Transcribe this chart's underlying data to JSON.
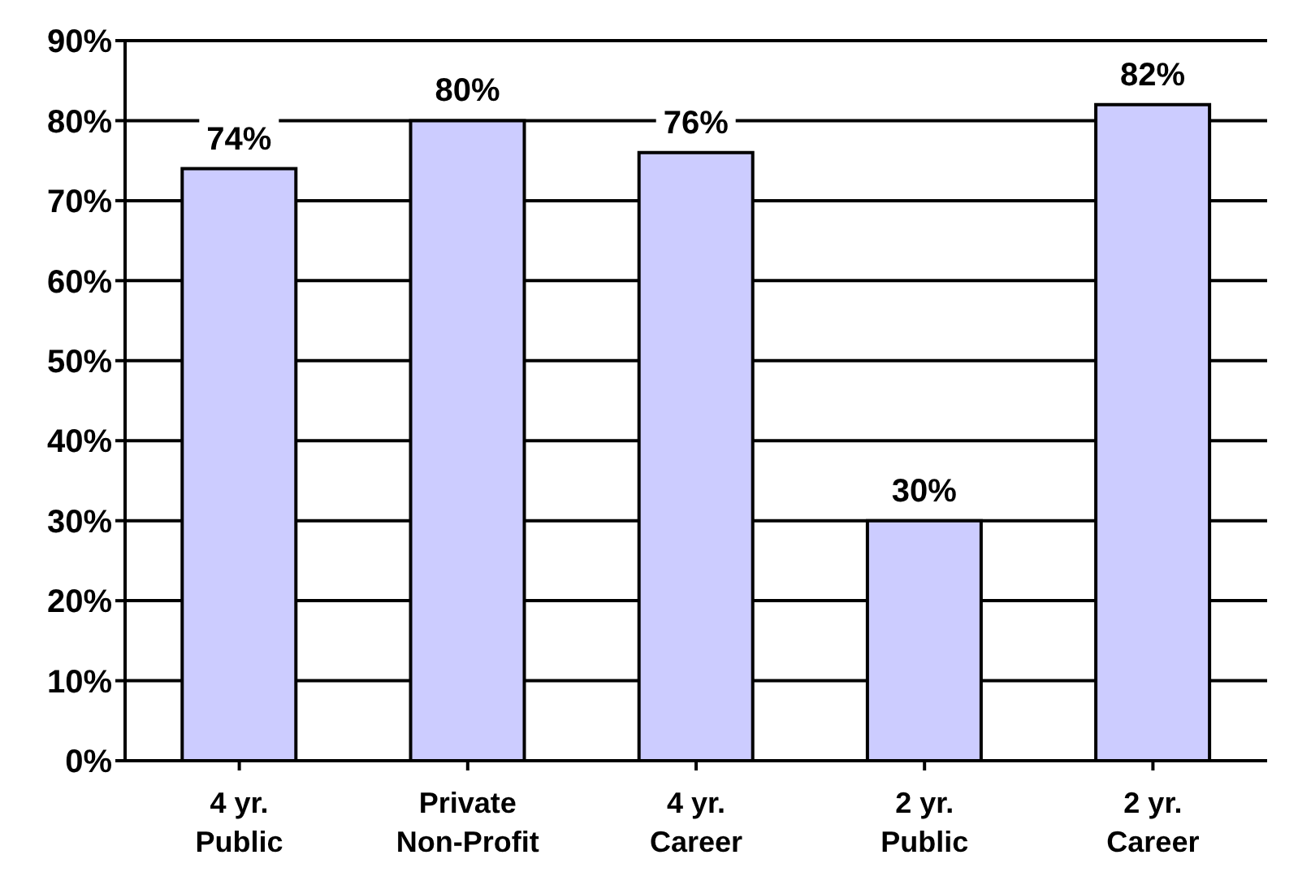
{
  "chart_data": {
    "type": "bar",
    "categories": [
      "4 yr.\nPublic",
      "Private\nNon-Profit",
      "4 yr.\nCareer",
      "2 yr.\nPublic",
      "2 yr.\nCareer"
    ],
    "values": [
      74,
      80,
      76,
      30,
      82
    ],
    "color": "#ccccff",
    "value_labels": [
      "74%",
      "80%",
      "76%",
      "30%",
      "82%"
    ],
    "ylim": [
      0,
      90
    ],
    "yticks": [
      {
        "value": 0,
        "label": "0%"
      },
      {
        "value": 10,
        "label": "10%"
      },
      {
        "value": 20,
        "label": "20%"
      },
      {
        "value": 30,
        "label": "30%"
      },
      {
        "value": 40,
        "label": "40%"
      },
      {
        "value": 50,
        "label": "50%"
      },
      {
        "value": 60,
        "label": "60%"
      },
      {
        "value": 70,
        "label": "70%"
      },
      {
        "value": 80,
        "label": "80%"
      },
      {
        "value": 90,
        "label": "90%"
      }
    ],
    "grid": "y"
  }
}
